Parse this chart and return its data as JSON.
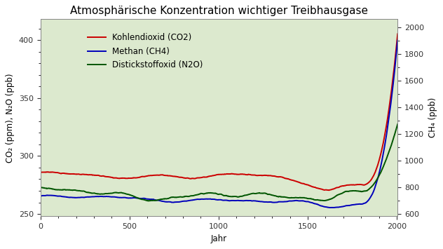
{
  "title": "Atmosphärische Konzentration wichtiger Treibhausgase",
  "xlabel": "Jahr",
  "ylabel_left": "CO₂ (ppm), N₂O (ppb)",
  "ylabel_right": "CH₄ (ppb)",
  "background_color": "#dce9ce",
  "figure_bg": "#ffffff",
  "co2_color": "#cc0000",
  "ch4_color": "#0000bb",
  "n2o_color": "#005500",
  "legend_labels": [
    "Kohlendioxid (CO2)",
    "Methan (CH4)",
    "Distickstoffoxid (N2O)"
  ],
  "xlim": [
    0,
    2005
  ],
  "ylim_left": [
    248,
    418
  ],
  "ylim_right": [
    580,
    2060
  ],
  "xticks": [
    0,
    500,
    1000,
    1500,
    2000
  ],
  "yticks_left": [
    250,
    300,
    350,
    400
  ],
  "yticks_right": [
    600,
    800,
    1000,
    1200,
    1400,
    1600,
    1800,
    2000
  ],
  "title_fontsize": 11,
  "axis_label_fontsize": 8.5,
  "tick_fontsize": 8,
  "legend_fontsize": 8.5,
  "line_width": 1.4
}
